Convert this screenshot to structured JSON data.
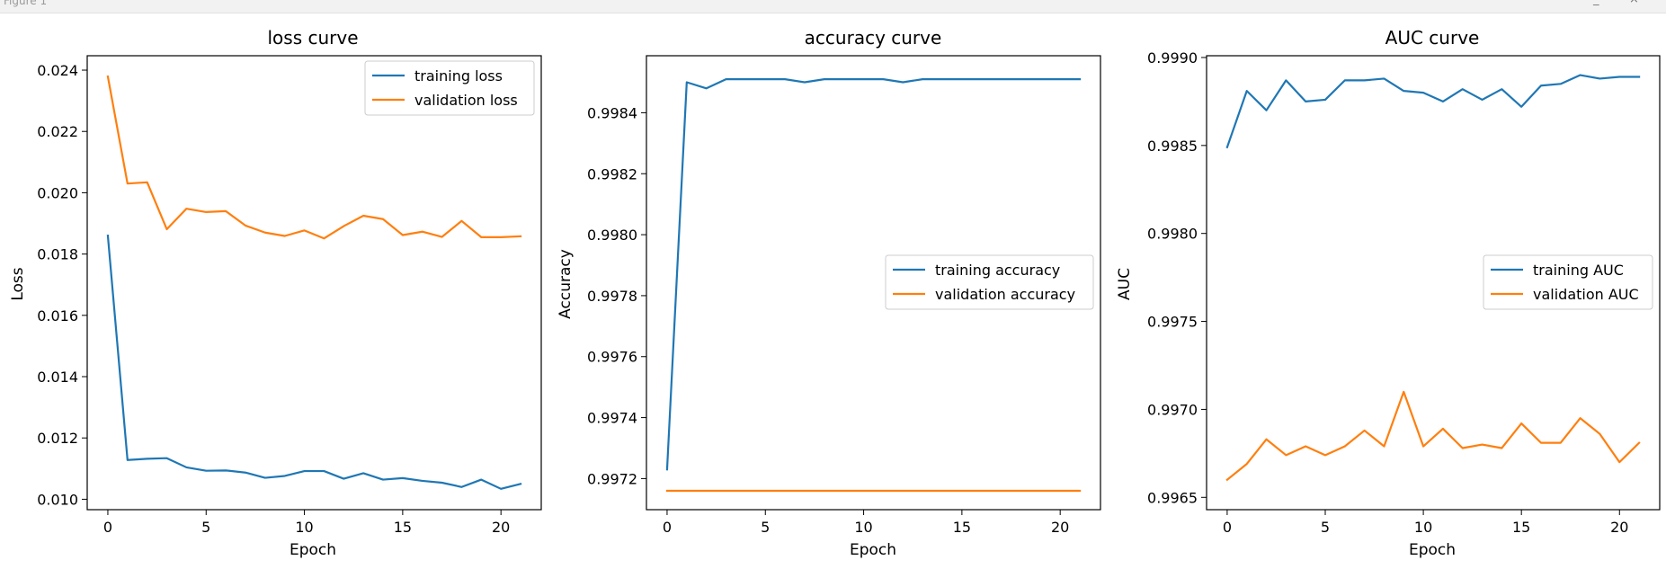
{
  "window": {
    "title": "Figure 1"
  },
  "colors": {
    "training": "#1f77b4",
    "validation": "#ff7f0e"
  },
  "chart_data": [
    {
      "type": "line",
      "title": "loss curve",
      "xlabel": "Epoch",
      "ylabel": "Loss",
      "xlim": [
        -1.05,
        22.05
      ],
      "ylim": [
        0.00966,
        0.02447
      ],
      "xticks": [
        0,
        5,
        10,
        15,
        20
      ],
      "yticks": [
        0.01,
        0.012,
        0.014,
        0.016,
        0.018,
        0.02,
        0.022,
        0.024
      ],
      "ytick_labels": [
        "0.010",
        "0.012",
        "0.014",
        "0.016",
        "0.018",
        "0.020",
        "0.022",
        "0.024"
      ],
      "legend_position": "upper right",
      "x": [
        0,
        1,
        2,
        3,
        4,
        5,
        6,
        7,
        8,
        9,
        10,
        11,
        12,
        13,
        14,
        15,
        16,
        17,
        18,
        19,
        20,
        21
      ],
      "series": [
        {
          "name": "training loss",
          "color": "#1f77b4",
          "values": [
            0.0186,
            0.01128,
            0.01132,
            0.01134,
            0.01104,
            0.01093,
            0.01094,
            0.01087,
            0.0107,
            0.01076,
            0.01092,
            0.01092,
            0.01067,
            0.01085,
            0.01064,
            0.01069,
            0.0106,
            0.01054,
            0.0104,
            0.01064,
            0.01034,
            0.0105
          ]
        },
        {
          "name": "validation loss",
          "color": "#ff7f0e",
          "values": [
            0.02379,
            0.0203,
            0.02034,
            0.01881,
            0.01948,
            0.01937,
            0.0194,
            0.01893,
            0.0187,
            0.01859,
            0.01877,
            0.01851,
            0.01891,
            0.01925,
            0.01914,
            0.01862,
            0.01873,
            0.01856,
            0.01908,
            0.01855,
            0.01855,
            0.01858
          ]
        }
      ]
    },
    {
      "type": "line",
      "title": "accuracy curve",
      "xlabel": "Epoch",
      "ylabel": "Accuracy",
      "xlim": [
        -1.05,
        22.05
      ],
      "ylim": [
        0.997098,
        0.998587
      ],
      "xticks": [
        0,
        5,
        10,
        15,
        20
      ],
      "yticks": [
        0.9972,
        0.9974,
        0.9976,
        0.9978,
        0.998,
        0.9982,
        0.9984
      ],
      "ytick_labels": [
        "0.9972",
        "0.9974",
        "0.9976",
        "0.9978",
        "0.9980",
        "0.9982",
        "0.9984"
      ],
      "legend_position": "center right",
      "x": [
        0,
        1,
        2,
        3,
        4,
        5,
        6,
        7,
        8,
        9,
        10,
        11,
        12,
        13,
        14,
        15,
        16,
        17,
        18,
        19,
        20,
        21
      ],
      "series": [
        {
          "name": "training accuracy",
          "color": "#1f77b4",
          "values": [
            0.99723,
            0.9985,
            0.99848,
            0.99851,
            0.99851,
            0.99851,
            0.99851,
            0.9985,
            0.99851,
            0.99851,
            0.99851,
            0.99851,
            0.9985,
            0.99851,
            0.99851,
            0.99851,
            0.99851,
            0.99851,
            0.99851,
            0.99851,
            0.99851,
            0.99851
          ]
        },
        {
          "name": "validation accuracy",
          "color": "#ff7f0e",
          "values": [
            0.99716,
            0.99716,
            0.99716,
            0.99716,
            0.99716,
            0.99716,
            0.99716,
            0.99716,
            0.99716,
            0.99716,
            0.99716,
            0.99716,
            0.99716,
            0.99716,
            0.99716,
            0.99716,
            0.99716,
            0.99716,
            0.99716,
            0.99716,
            0.99716,
            0.99716
          ]
        }
      ]
    },
    {
      "type": "line",
      "title": "AUC curve",
      "xlabel": "Epoch",
      "ylabel": "AUC",
      "xlim": [
        -1.05,
        22.05
      ],
      "ylim": [
        0.99643,
        0.99901
      ],
      "xticks": [
        0,
        5,
        10,
        15,
        20
      ],
      "yticks": [
        0.9965,
        0.997,
        0.9975,
        0.998,
        0.9985,
        0.999
      ],
      "ytick_labels": [
        "0.9965",
        "0.9970",
        "0.9975",
        "0.9980",
        "0.9985",
        "0.9990"
      ],
      "legend_position": "center right",
      "x": [
        0,
        1,
        2,
        3,
        4,
        5,
        6,
        7,
        8,
        9,
        10,
        11,
        12,
        13,
        14,
        15,
        16,
        17,
        18,
        19,
        20,
        21
      ],
      "series": [
        {
          "name": "training AUC",
          "color": "#1f77b4",
          "values": [
            0.99849,
            0.99881,
            0.9987,
            0.99887,
            0.99875,
            0.99876,
            0.99887,
            0.99887,
            0.99888,
            0.99881,
            0.9988,
            0.99875,
            0.99882,
            0.99876,
            0.99882,
            0.99872,
            0.99884,
            0.99885,
            0.9989,
            0.99888,
            0.99889,
            0.99889
          ]
        },
        {
          "name": "validation AUC",
          "color": "#ff7f0e",
          "values": [
            0.9966,
            0.99669,
            0.99683,
            0.99674,
            0.99679,
            0.99674,
            0.99679,
            0.99688,
            0.99679,
            0.9971,
            0.99679,
            0.99689,
            0.99678,
            0.9968,
            0.99678,
            0.99692,
            0.99681,
            0.99681,
            0.99695,
            0.99686,
            0.9967,
            0.99681
          ]
        }
      ]
    }
  ]
}
